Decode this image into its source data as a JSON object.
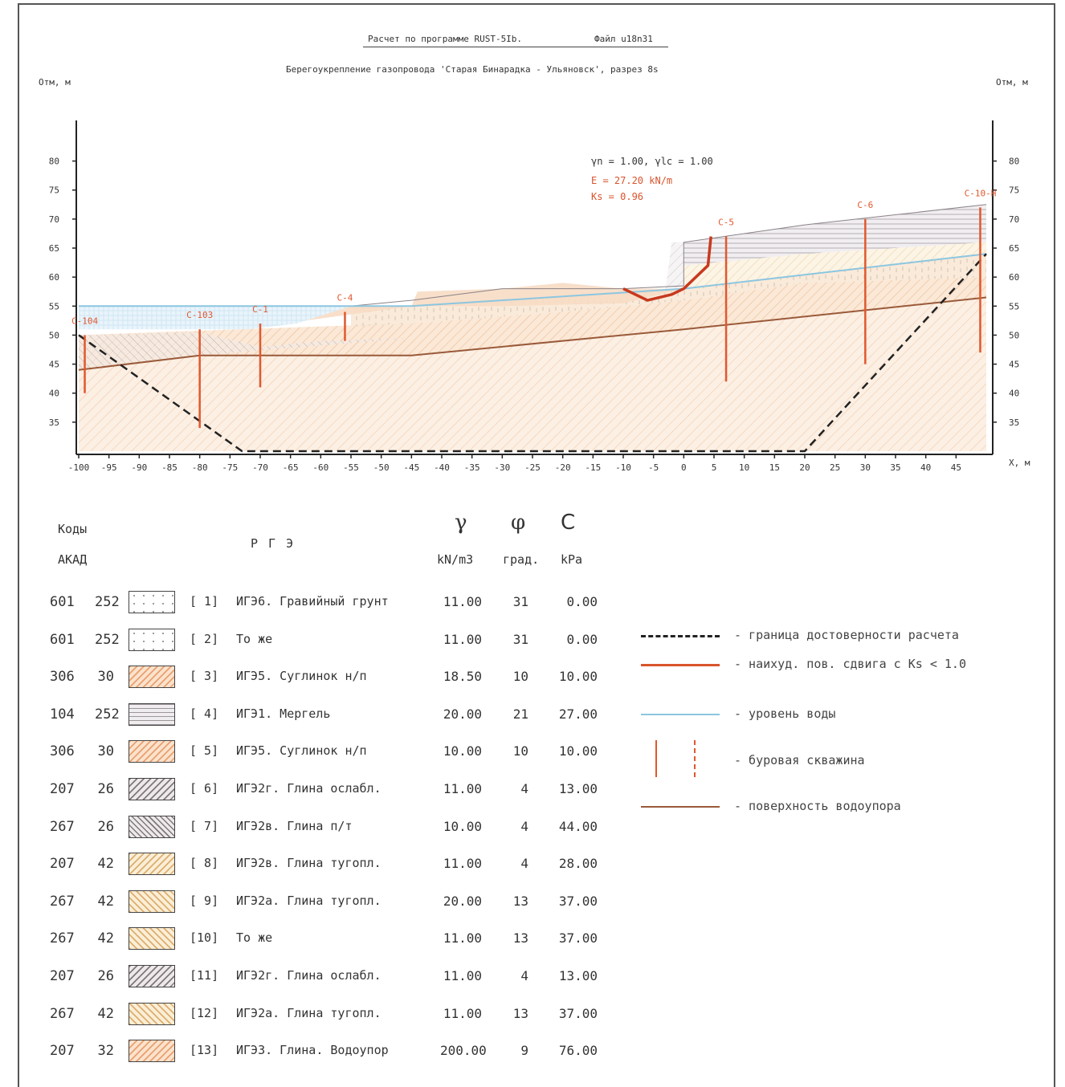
{
  "header": {
    "title_left": "Расчет по программе RUST-5Ib.",
    "title_right": "Файл u18n31",
    "subtitle": "Берегоукрепление газопровода 'Старая Бинарадка - Ульяновск', разрез 8s",
    "y_label_left": "Отм, м",
    "y_label_right": "Отм, м",
    "x_label": "X, м"
  },
  "chart_data": {
    "type": "cross-section",
    "x_ticks": [
      -100,
      -95,
      -90,
      -85,
      -80,
      -75,
      -70,
      -65,
      -60,
      -55,
      -50,
      -45,
      -40,
      -35,
      -30,
      -25,
      -20,
      -15,
      -10,
      -5,
      0,
      5,
      10,
      15,
      20,
      25,
      30,
      35,
      40,
      45
    ],
    "y_ticks": [
      35,
      40,
      45,
      50,
      55,
      60,
      65,
      70,
      75,
      80
    ],
    "xlim": [
      -100,
      50
    ],
    "ylim": [
      30,
      87
    ],
    "boreholes": [
      {
        "label": "С-104",
        "x": -99,
        "top": 50,
        "bottom": 40
      },
      {
        "label": "С-103",
        "x": -80,
        "top": 51,
        "bottom": 34
      },
      {
        "label": "С-1",
        "x": -70,
        "top": 52,
        "bottom": 41
      },
      {
        "label": "С-4",
        "x": -56,
        "top": 54,
        "bottom": 49
      },
      {
        "label": "С-5",
        "x": 7,
        "top": 67,
        "bottom": 42
      },
      {
        "label": "С-6",
        "x": 30,
        "top": 70,
        "bottom": 45
      },
      {
        "label": "С-10-Н",
        "x": 49,
        "top": 72,
        "bottom": 47
      }
    ],
    "water_level": [
      [
        -100,
        55
      ],
      [
        -45,
        55
      ],
      [
        0,
        58
      ],
      [
        50,
        64
      ]
    ],
    "aquitard_surface": [
      [
        -100,
        44
      ],
      [
        -80,
        46.5
      ],
      [
        -45,
        46.5
      ],
      [
        0,
        51
      ],
      [
        50,
        56.5
      ]
    ],
    "ground_surface": [
      [
        -100,
        55
      ],
      [
        -55,
        55
      ],
      [
        -45,
        56
      ],
      [
        -30,
        58
      ],
      [
        -10,
        58
      ],
      [
        0,
        58.5
      ],
      [
        0,
        66
      ],
      [
        20,
        69
      ],
      [
        50,
        72.5
      ]
    ],
    "slip_surface": [
      [
        -10,
        58
      ],
      [
        -6,
        56
      ],
      [
        -2,
        57
      ],
      [
        0,
        58
      ],
      [
        4,
        62
      ],
      [
        4.5,
        67
      ]
    ],
    "reliability_boundary": [
      [
        -100,
        50
      ],
      [
        -73,
        30
      ],
      [
        20,
        30
      ],
      [
        50,
        64
      ]
    ],
    "annotation": {
      "gamma_line": "γn = 1.00,  γlc = 1.00",
      "energy": "E = 27.20 kN/m",
      "ks": "Ks = 0.96"
    }
  },
  "legend_table": {
    "col_codes_line1": "Коды",
    "col_codes_line2": "АКАД",
    "col_rge": "Р Г Э",
    "col_gamma_sym": "γ",
    "col_phi_sym": "φ",
    "col_c_sym": "C",
    "col_gamma_unit": "kN/m3",
    "col_phi_unit": "град.",
    "col_c_unit": "kPa",
    "rows": [
      {
        "code1": "601",
        "code2": "252",
        "idx": "[ 1]",
        "name": "ИГЭ6. Гравийный грунт",
        "gamma": "11.00",
        "phi": "31",
        "c": "0.00",
        "fill": "dots"
      },
      {
        "code1": "601",
        "code2": "252",
        "idx": "[ 2]",
        "name": "То же",
        "gamma": "11.00",
        "phi": "31",
        "c": "0.00",
        "fill": "dots"
      },
      {
        "code1": "306",
        "code2": "30",
        "idx": "[ 3]",
        "name": "ИГЭ5. Суглинок н/п",
        "gamma": "18.50",
        "phi": "10",
        "c": "10.00",
        "fill": "orange-hatch"
      },
      {
        "code1": "104",
        "code2": "252",
        "idx": "[ 4]",
        "name": "ИГЭ1. Мергель",
        "gamma": "20.00",
        "phi": "21",
        "c": "27.00",
        "fill": "horizontal"
      },
      {
        "code1": "306",
        "code2": "30",
        "idx": "[ 5]",
        "name": "ИГЭ5. Суглинок н/п",
        "gamma": "10.00",
        "phi": "10",
        "c": "10.00",
        "fill": "orange-hatch"
      },
      {
        "code1": "207",
        "code2": "26",
        "idx": "[ 6]",
        "name": "ИГЭ2г. Глина ослабл.",
        "gamma": "11.00",
        "phi": "4",
        "c": "13.00",
        "fill": "gray-hatch"
      },
      {
        "code1": "267",
        "code2": "26",
        "idx": "[ 7]",
        "name": "ИГЭ2в. Глина п/т",
        "gamma": "10.00",
        "phi": "4",
        "c": "44.00",
        "fill": "back-hatch"
      },
      {
        "code1": "207",
        "code2": "42",
        "idx": "[ 8]",
        "name": "ИГЭ2в. Глина тугопл.",
        "gamma": "11.00",
        "phi": "4",
        "c": "28.00",
        "fill": "yellow-hatch"
      },
      {
        "code1": "267",
        "code2": "42",
        "idx": "[ 9]",
        "name": "ИГЭ2а. Глина тугопл.",
        "gamma": "20.00",
        "phi": "13",
        "c": "37.00",
        "fill": "yellow-back"
      },
      {
        "code1": "267",
        "code2": "42",
        "idx": "[10]",
        "name": "То же",
        "gamma": "11.00",
        "phi": "13",
        "c": "37.00",
        "fill": "yellow-back"
      },
      {
        "code1": "207",
        "code2": "26",
        "idx": "[11]",
        "name": "ИГЭ2г. Глина ослабл.",
        "gamma": "11.00",
        "phi": "4",
        "c": "13.00",
        "fill": "gray-hatch"
      },
      {
        "code1": "267",
        "code2": "42",
        "idx": "[12]",
        "name": "ИГЭ2а. Глина тугопл.",
        "gamma": "11.00",
        "phi": "13",
        "c": "37.00",
        "fill": "yellow-back"
      },
      {
        "code1": "207",
        "code2": "32",
        "idx": "[13]",
        "name": "ИГЭ3. Глина. Водоупор",
        "gamma": "200.00",
        "phi": "9",
        "c": "76.00",
        "fill": "orange-hatch"
      }
    ]
  },
  "symbol_legend": {
    "items": [
      {
        "text": "- граница достоверности расчета",
        "style": "dashed-black"
      },
      {
        "text": "- наихуд. пов. сдвига с Ks < 1.0",
        "style": "solid-red"
      },
      {
        "text": "- уровень воды",
        "style": "solid-blue"
      },
      {
        "text": "- буровая скважина",
        "style": "borehole"
      },
      {
        "text": "- поверхность водоупора",
        "style": "solid-brown"
      }
    ]
  },
  "colors": {
    "borehole": "#e0582f",
    "water": "#8cc6e0",
    "aquitard": "#9a5a3a",
    "slip": "#c8391d",
    "boundary": "#222222",
    "soil_orange": "#f7dcc4",
    "soil_gray": "#e8e5e9"
  }
}
